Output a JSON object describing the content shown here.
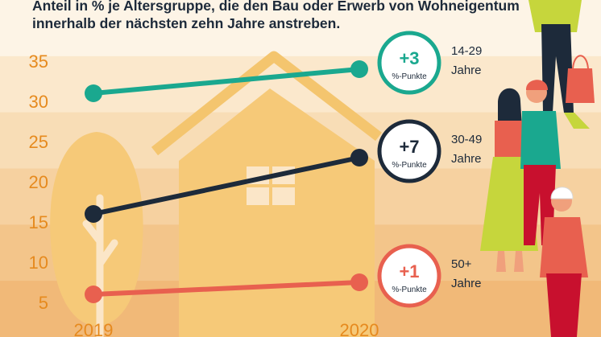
{
  "subtitle": {
    "line1": "Anteil in % je Altersgruppe, die den Bau oder Erwerb von Wohneigentum",
    "line2": "innerhalb der nächsten zehn Jahre anstreben."
  },
  "colors": {
    "background_bands": [
      "#fdf4e6",
      "#fbe8cc",
      "#f8ddb6",
      "#f6d1a0",
      "#f3c58a",
      "#f1b978"
    ],
    "house": "#f6c978",
    "house_outline": "#f4c56e",
    "tree": "#f6c978",
    "tree_trunk": "#fbe6c8",
    "axis_text": "#e68a1e",
    "dark_text": "#1d2a3a"
  },
  "icons": [
    "house-illustration",
    "tree-illustration",
    "people-illustration"
  ],
  "chart_data": {
    "type": "line",
    "title": "",
    "xlabel": "",
    "ylabel": "",
    "x": [
      "2019",
      "2020"
    ],
    "ylim": [
      5,
      37
    ],
    "yticks": [
      5,
      10,
      15,
      20,
      25,
      30,
      35
    ],
    "grid": false,
    "series": [
      {
        "name": "14-29 Jahre",
        "label_line1": "14-29",
        "label_line2": "Jahre",
        "values": [
          31,
          34
        ],
        "color": "#1aa88f",
        "badge_value": "+3",
        "badge_unit": "%-Punkte"
      },
      {
        "name": "30-49 Jahre",
        "label_line1": "30-49",
        "label_line2": "Jahre",
        "values": [
          16,
          23
        ],
        "color": "#1d2a3a",
        "badge_value": "+7",
        "badge_unit": "%-Punkte"
      },
      {
        "name": "50+ Jahre",
        "label_line1": "50+",
        "label_line2": "Jahre",
        "values": [
          6,
          7.5
        ],
        "color": "#e8604f",
        "badge_value": "+1",
        "badge_unit": "%-Punkte"
      }
    ]
  }
}
